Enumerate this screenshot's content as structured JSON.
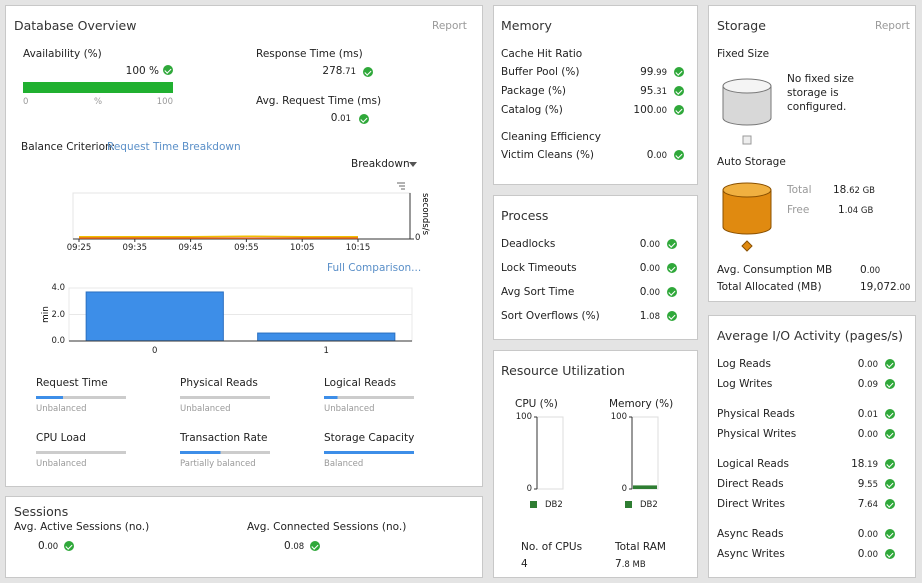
{
  "database_overview": {
    "title": "Database Overview",
    "report": "Report",
    "availability": {
      "label": "Availability (%)",
      "value": "100 %",
      "level": 100,
      "scale": [
        "0",
        "%",
        "100"
      ]
    },
    "response_time": {
      "label": "Response Time (ms)",
      "value": "278.71"
    },
    "avg_request_time": {
      "label": "Avg. Request Time (ms)",
      "value": "0.01"
    },
    "balance_criterion": {
      "label": "Balance Criterion:",
      "link": "Request Time Breakdown"
    },
    "breakdown": "Breakdown",
    "line_chart": {
      "type": "line",
      "x": [
        "09:25",
        "09:35",
        "09:45",
        "09:55",
        "10:05",
        "10:15"
      ],
      "y_label": "seconds/s",
      "ylim": [
        0,
        1
      ],
      "yticks": [
        0
      ],
      "series": [
        {
          "color": "#f0c000",
          "values": [
            0.05,
            0.05,
            0.05,
            0.06,
            0.05,
            0.05
          ]
        },
        {
          "color": "#e06020",
          "values": [
            0.02,
            0.02,
            0.02,
            0.02,
            0.02,
            0.02
          ]
        }
      ]
    },
    "full_comparison": "Full Comparison...",
    "bar_chart": {
      "type": "bar",
      "categories": [
        "0",
        "1"
      ],
      "values": [
        3.7,
        0.6
      ],
      "color": "#3d8ee8",
      "ylim": [
        0,
        4
      ],
      "y_label": "min",
      "yticks": [
        {
          "value": 4,
          "label": "4.0"
        },
        {
          "value": 2,
          "label": "2.0"
        },
        {
          "value": 0,
          "label": "0.0"
        }
      ]
    },
    "balance": [
      {
        "name": "Request Time",
        "status": "Unbalanced",
        "level": 30
      },
      {
        "name": "Physical Reads",
        "status": "Unbalanced",
        "level": 0
      },
      {
        "name": "Logical Reads",
        "status": "Unbalanced",
        "level": 15
      },
      {
        "name": "CPU Load",
        "status": "Unbalanced",
        "level": 0
      },
      {
        "name": "Transaction Rate",
        "status": "Partially balanced",
        "level": 45
      },
      {
        "name": "Storage Capacity",
        "status": "Balanced",
        "level": 100
      }
    ]
  },
  "sessions": {
    "title": "Sessions",
    "items": [
      {
        "label": "Avg. Active Sessions (no.)",
        "value": "0.00"
      },
      {
        "label": "Avg. Connected Sessions (no.)",
        "value": "0.08"
      }
    ]
  },
  "memory": {
    "title": "Memory",
    "cache_hit_ratio": "Cache Hit Ratio",
    "rows": [
      {
        "label": "Buffer Pool (%)",
        "value": "99.99"
      },
      {
        "label": "Package (%)",
        "value": "95.31"
      },
      {
        "label": "Catalog (%)",
        "value": "100.00"
      }
    ],
    "cleaning_efficiency": "Cleaning Efficiency",
    "rows2": [
      {
        "label": "Victim Cleans (%)",
        "value": "0.00"
      }
    ]
  },
  "process": {
    "title": "Process",
    "rows": [
      {
        "label": "Deadlocks",
        "value": "0.00"
      },
      {
        "label": "Lock Timeouts",
        "value": "0.00"
      },
      {
        "label": "Avg Sort Time",
        "value": "0.00"
      },
      {
        "label": "Sort Overflows (%)",
        "value": "1.08"
      }
    ]
  },
  "resource_utilization": {
    "title": "Resource Utilization",
    "gauges": [
      {
        "label": "CPU (%)",
        "ylim": [
          0,
          100
        ],
        "yticks": [
          100,
          0
        ],
        "value": 0,
        "legend": "DB2",
        "color": "#2e7d32"
      },
      {
        "label": "Memory (%)",
        "ylim": [
          0,
          100
        ],
        "yticks": [
          100,
          0
        ],
        "value": 5,
        "legend": "DB2",
        "color": "#2e7d32"
      }
    ],
    "cpus": {
      "label": "No. of CPUs",
      "value": "4"
    },
    "ram": {
      "label": "Total RAM",
      "value": "7.8 MB"
    }
  },
  "storage": {
    "title": "Storage",
    "report": "Report",
    "fixed_size": "Fixed Size",
    "fixed_message": "No fixed size storage is configured.",
    "auto_storage": "Auto Storage",
    "total": {
      "label": "Total",
      "value": "18.62 GB"
    },
    "free": {
      "label": "Free",
      "value": "1.04 GB"
    },
    "avg_consumption": {
      "label": "Avg. Consumption MB",
      "value": "0.00"
    },
    "total_allocated": {
      "label": "Total Allocated (MB)",
      "value": "19,072.00"
    }
  },
  "io_activity": {
    "title": "Average I/O Activity (pages/s)",
    "rows": [
      {
        "label": "Log Reads",
        "value": "0.00"
      },
      {
        "label": "Log Writes",
        "value": "0.09"
      },
      {
        "label": "Physical Reads",
        "value": "0.01"
      },
      {
        "label": "Physical Writes",
        "value": "0.00"
      },
      {
        "label": "Logical Reads",
        "value": "18.19"
      },
      {
        "label": "Direct Reads",
        "value": "9.55"
      },
      {
        "label": "Direct Writes",
        "value": "7.64"
      },
      {
        "label": "Async Reads",
        "value": "0.00"
      },
      {
        "label": "Async Writes",
        "value": "0.00"
      }
    ]
  }
}
